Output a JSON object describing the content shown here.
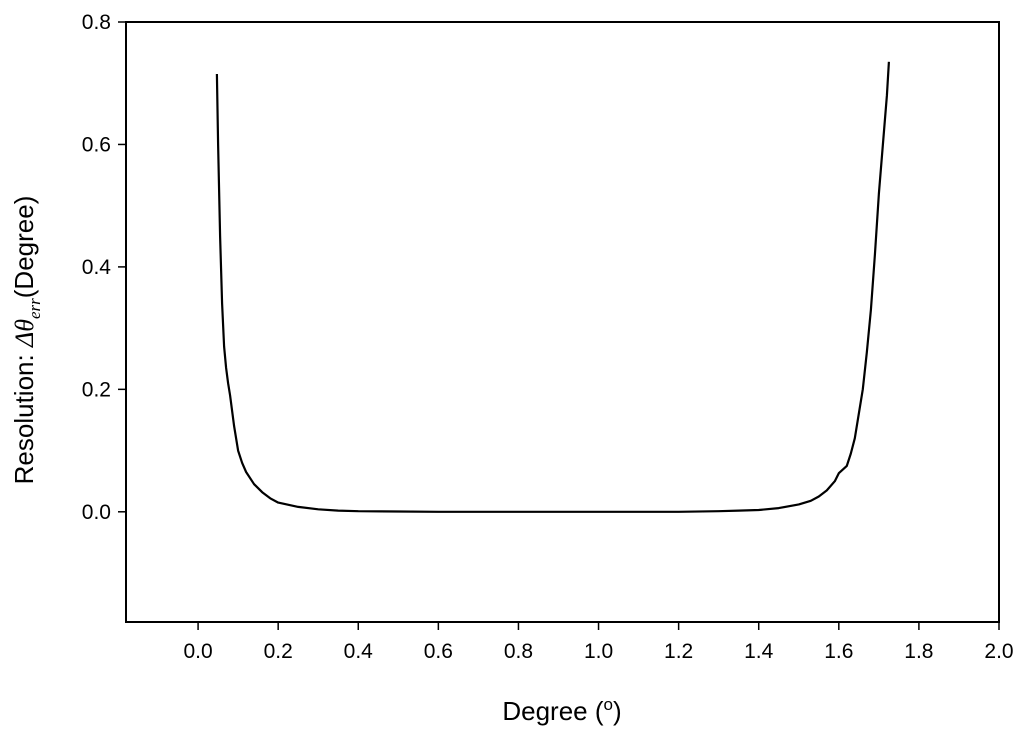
{
  "chart_data": {
    "type": "line",
    "title": "",
    "xlabel": {
      "main": "Degree (",
      "superscript": "o",
      "close": ")"
    },
    "ylabel": {
      "prefix": "Resolution: ",
      "delta": "Δ",
      "theta": "θ",
      "subscript": "err",
      "suffix": "(Degree)"
    },
    "xlim": [
      -0.18,
      2.0
    ],
    "ylim": [
      -0.18,
      0.8
    ],
    "xticks": [
      0.0,
      0.2,
      0.4,
      0.6,
      0.8,
      1.0,
      1.2,
      1.4,
      1.6,
      1.8,
      2.0
    ],
    "xtick_labels": [
      "0.0",
      "0.2",
      "0.4",
      "0.6",
      "0.8",
      "1.0",
      "1.2",
      "1.4",
      "1.6",
      "1.8",
      "2.0"
    ],
    "yticks": [
      0.0,
      0.2,
      0.4,
      0.6,
      0.8
    ],
    "ytick_labels": [
      "0.0",
      "0.2",
      "0.4",
      "0.6",
      "0.8"
    ],
    "grid": false,
    "line_color": "#000000",
    "series": [
      {
        "x": [
          0.047,
          0.05,
          0.055,
          0.06,
          0.065,
          0.07,
          0.075,
          0.08,
          0.09,
          0.1,
          0.11,
          0.12,
          0.14,
          0.16,
          0.18,
          0.2,
          0.25,
          0.3,
          0.35,
          0.4,
          0.5,
          0.6,
          0.7,
          0.8,
          0.9,
          1.0,
          1.1,
          1.2,
          1.3,
          1.35,
          1.4,
          1.45,
          1.5,
          1.53,
          1.55,
          1.57,
          1.59,
          1.6,
          1.62,
          1.63,
          1.64,
          1.65,
          1.66,
          1.67,
          1.68,
          1.69,
          1.7,
          1.71,
          1.72,
          1.725
        ],
        "y": [
          0.715,
          0.6,
          0.45,
          0.34,
          0.27,
          0.235,
          0.21,
          0.19,
          0.14,
          0.1,
          0.08,
          0.065,
          0.045,
          0.032,
          0.022,
          0.015,
          0.008,
          0.004,
          0.002,
          0.001,
          0.0005,
          0.0,
          0.0,
          0.0,
          0.0,
          0.0,
          0.0,
          0.0,
          0.001,
          0.002,
          0.003,
          0.006,
          0.012,
          0.018,
          0.025,
          0.035,
          0.05,
          0.063,
          0.075,
          0.095,
          0.12,
          0.16,
          0.2,
          0.26,
          0.33,
          0.42,
          0.52,
          0.6,
          0.68,
          0.735
        ]
      }
    ]
  }
}
